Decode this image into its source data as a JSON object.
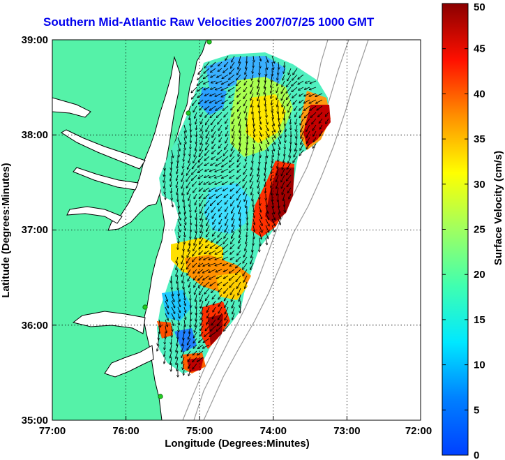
{
  "title": "Southern Mid-Atlantic Raw Velocities 2007/07/25 1000 GMT",
  "map": {
    "xlabel": "Longitude (Degrees:Minutes)",
    "ylabel": "Latitude (Degrees:Minutes)",
    "xticks": [
      "77:00",
      "76:00",
      "75:00",
      "74:00",
      "73:00",
      "72:00"
    ],
    "yticks": [
      "39:00",
      "38:00",
      "37:00",
      "36:00",
      "35:00"
    ],
    "lon_range": [
      -77,
      -72
    ],
    "lat_range": [
      35,
      39
    ],
    "grid": true,
    "colors": {
      "land": "#55f2a8",
      "ocean": "#ffffff",
      "coast": "#000000",
      "bathymetry": "#9a9a9a",
      "radar_site": "#22cc22"
    }
  },
  "colorbar": {
    "label": "Surface Velocity (cm/s)",
    "ticks": [
      "0",
      "5",
      "10",
      "15",
      "20",
      "25",
      "30",
      "35",
      "40",
      "45",
      "50"
    ],
    "min": 0,
    "max": 50
  }
}
